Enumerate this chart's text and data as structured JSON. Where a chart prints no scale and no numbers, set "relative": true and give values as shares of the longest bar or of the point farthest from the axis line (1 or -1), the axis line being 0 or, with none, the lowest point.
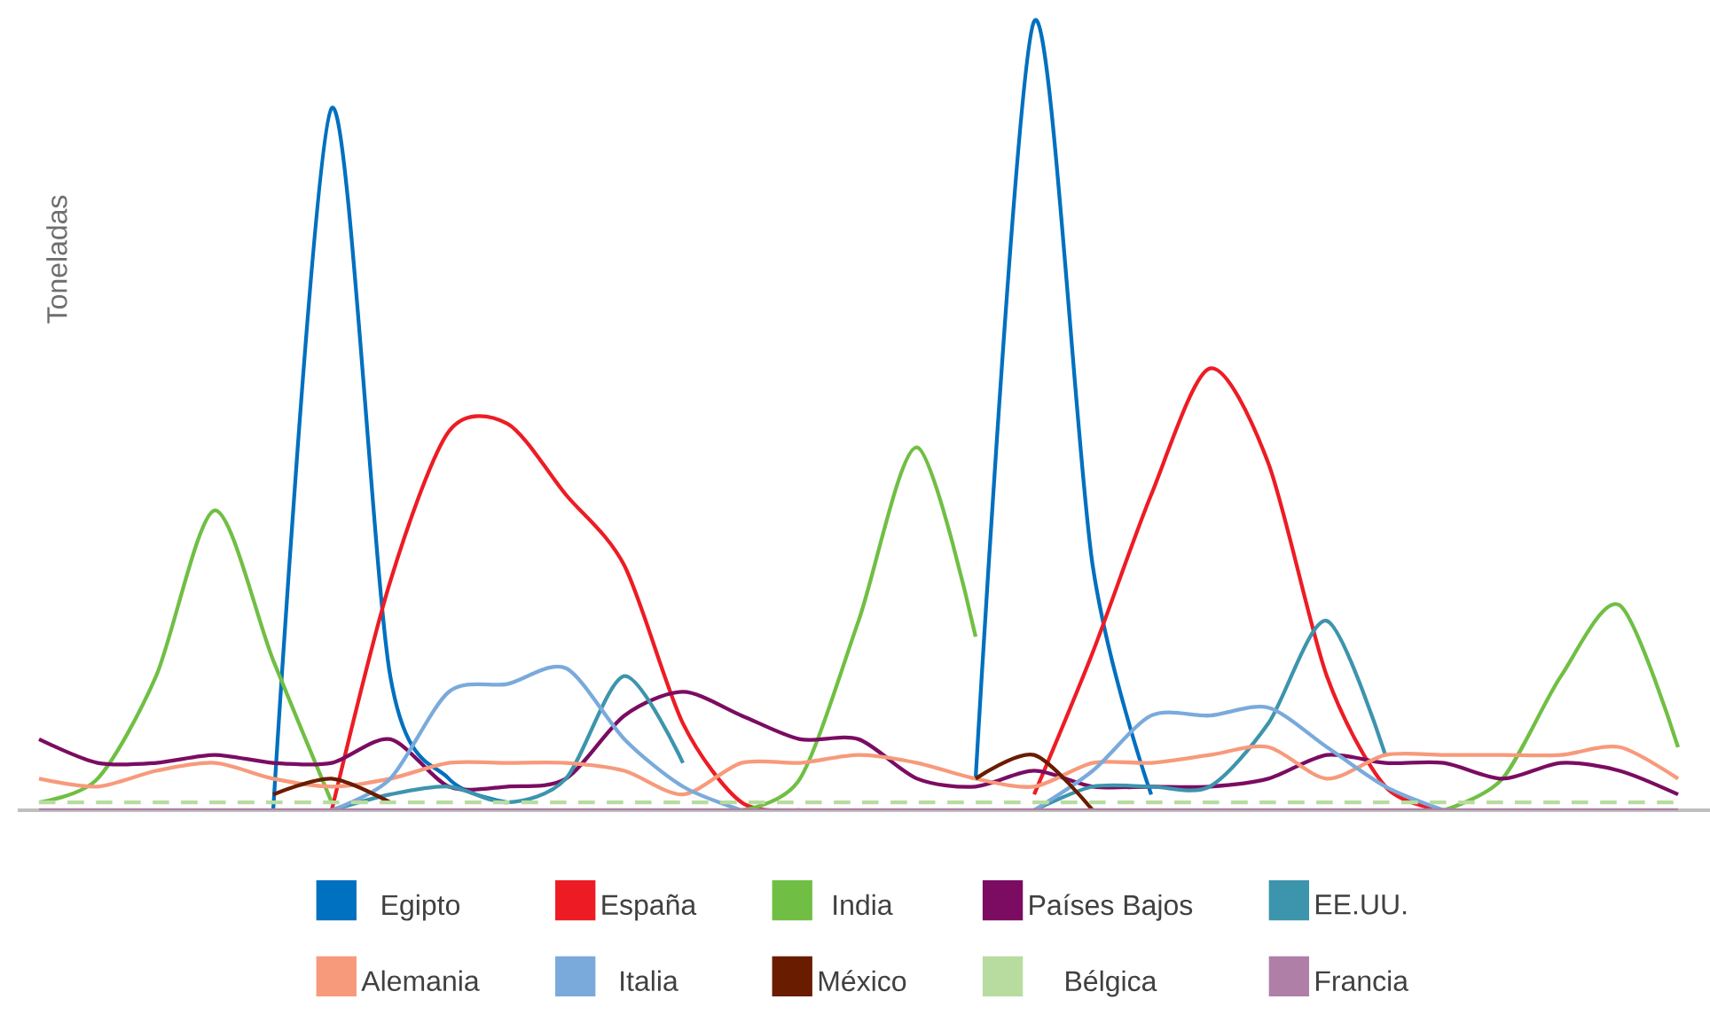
{
  "chart_data": {
    "type": "line",
    "relative": true,
    "ylabel": "Toneladas",
    "legend": "bottom",
    "marker": "none",
    "line_style": "solid",
    "categories": [
      null,
      null,
      null,
      null,
      null,
      null,
      null,
      null,
      null,
      null,
      null,
      null,
      null,
      null,
      null,
      null,
      null,
      null,
      null,
      null,
      null,
      null,
      null,
      null,
      null,
      null,
      null,
      null,
      null
    ],
    "series": [
      {
        "name": "Egipto",
        "color": "#0070c0",
        "values": [
          null,
          null,
          null,
          null,
          0.0,
          0.89,
          0.17,
          0.04,
          0.01,
          null,
          null,
          null,
          null,
          null,
          null,
          null,
          0.04,
          1.0,
          0.31,
          0.02,
          null,
          null,
          null,
          null,
          null,
          null,
          null,
          null,
          null
        ]
      },
      {
        "name": "España",
        "color": "#ed1c24",
        "values": [
          null,
          null,
          null,
          null,
          null,
          0.0,
          0.29,
          0.48,
          0.49,
          0.4,
          0.31,
          0.11,
          0.01,
          0.0,
          null,
          null,
          null,
          0.02,
          0.2,
          0.4,
          0.56,
          0.44,
          0.17,
          0.03,
          0.0,
          null,
          null,
          null,
          null
        ]
      },
      {
        "name": "India",
        "color": "#70bf44",
        "values": [
          0.01,
          0.04,
          0.17,
          0.38,
          0.19,
          0.01,
          null,
          null,
          null,
          null,
          null,
          null,
          0.0,
          0.04,
          0.24,
          0.46,
          0.22,
          null,
          null,
          null,
          null,
          null,
          null,
          null,
          0.0,
          0.04,
          0.17,
          0.26,
          0.08
        ]
      },
      {
        "name": "Países Bajos",
        "color": "#7b0c62",
        "values": [
          0.09,
          0.06,
          0.06,
          0.07,
          0.06,
          0.06,
          0.09,
          0.03,
          0.03,
          0.04,
          0.12,
          0.15,
          0.12,
          0.09,
          0.09,
          0.04,
          0.03,
          0.05,
          0.03,
          0.03,
          0.03,
          0.04,
          0.07,
          0.06,
          0.06,
          0.04,
          0.06,
          0.05,
          0.02
        ]
      },
      {
        "name": "EE.UU.",
        "color": "#3d94ad",
        "values": [
          null,
          null,
          null,
          null,
          null,
          0.0,
          0.02,
          0.03,
          0.01,
          0.04,
          0.17,
          0.06,
          null,
          null,
          null,
          null,
          null,
          0.0,
          0.03,
          0.03,
          0.03,
          0.11,
          0.24,
          0.07,
          null,
          null,
          null,
          null,
          null
        ]
      },
      {
        "name": "Alemania",
        "color": "#f79a7b",
        "values": [
          0.04,
          0.03,
          0.05,
          0.06,
          0.04,
          0.03,
          0.04,
          0.06,
          0.06,
          0.06,
          0.05,
          0.02,
          0.06,
          0.06,
          0.07,
          0.06,
          0.04,
          0.03,
          0.06,
          0.06,
          0.07,
          0.08,
          0.04,
          0.07,
          0.07,
          0.07,
          0.07,
          0.08,
          0.04
        ]
      },
      {
        "name": "Italia",
        "color": "#7aaadb",
        "values": [
          null,
          null,
          null,
          null,
          null,
          0.0,
          0.04,
          0.15,
          0.16,
          0.18,
          0.09,
          0.03,
          0.0,
          null,
          null,
          null,
          null,
          0.0,
          0.05,
          0.12,
          0.12,
          0.13,
          0.08,
          0.03,
          0.0,
          null,
          null,
          null,
          null
        ]
      },
      {
        "name": "México",
        "color": "#6a1c00",
        "values": [
          null,
          null,
          null,
          null,
          0.02,
          0.04,
          0.01,
          null,
          null,
          null,
          null,
          null,
          null,
          null,
          null,
          null,
          0.04,
          0.07,
          0.0,
          null,
          null,
          null,
          null,
          null,
          null,
          null,
          null,
          null,
          null
        ]
      },
      {
        "name": "Bélgica",
        "color": "#b8dca0",
        "line_style": "dashed",
        "values": [
          0.01,
          0.01,
          0.01,
          0.01,
          0.01,
          0.01,
          0.01,
          0.01,
          0.01,
          0.01,
          0.01,
          0.01,
          0.01,
          0.01,
          0.01,
          0.01,
          0.01,
          0.01,
          0.01,
          0.01,
          0.01,
          0.01,
          0.01,
          0.01,
          0.01,
          0.01,
          0.01,
          0.01,
          0.01
        ]
      },
      {
        "name": "Francia",
        "color": "#b07fa8",
        "values": [
          0.0,
          0.0,
          0.0,
          0.0,
          0.0,
          0.0,
          0.0,
          0.0,
          0.0,
          0.0,
          0.0,
          0.0,
          0.0,
          0.0,
          0.0,
          0.0,
          0.0,
          0.0,
          0.0,
          0.0,
          0.0,
          0.0,
          0.0,
          0.0,
          0.0,
          0.0,
          0.0,
          0.0,
          0.0
        ]
      }
    ]
  }
}
